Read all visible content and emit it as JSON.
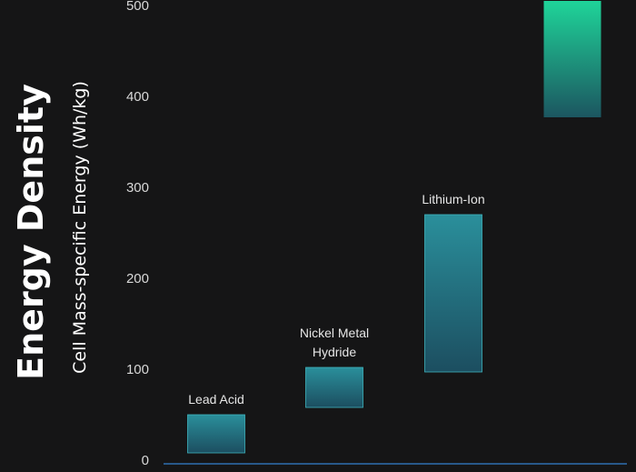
{
  "chart_data": {
    "type": "bar",
    "subtype": "floating-range",
    "title": "Energy Density",
    "ylabel": "Cell Mass-specific Energy (Wh/kg)",
    "xlabel": "",
    "ylim": [
      0,
      500
    ],
    "yticks": [
      0,
      100,
      200,
      300,
      400,
      500
    ],
    "grid": false,
    "categories": [
      "Lead Acid",
      "Nickel Metal Hydride",
      "Lithium-Ion",
      ""
    ],
    "category_lines": [
      [
        "Lead Acid"
      ],
      [
        "Nickel Metal",
        "Hydride"
      ],
      [
        "Lithium-Ion"
      ],
      []
    ],
    "ranges": [
      [
        8,
        50
      ],
      [
        58,
        102
      ],
      [
        97,
        270
      ],
      [
        377,
        505
      ]
    ],
    "colors": {
      "background": "#151516",
      "bar_top": "#2a8f9b",
      "bar_bottom": "#1c4e60",
      "bar_edge": "#3fb3bd",
      "highlight_top": "#1fd499",
      "highlight_bottom": "#1c5660",
      "axis": "#2f6fb0"
    }
  }
}
